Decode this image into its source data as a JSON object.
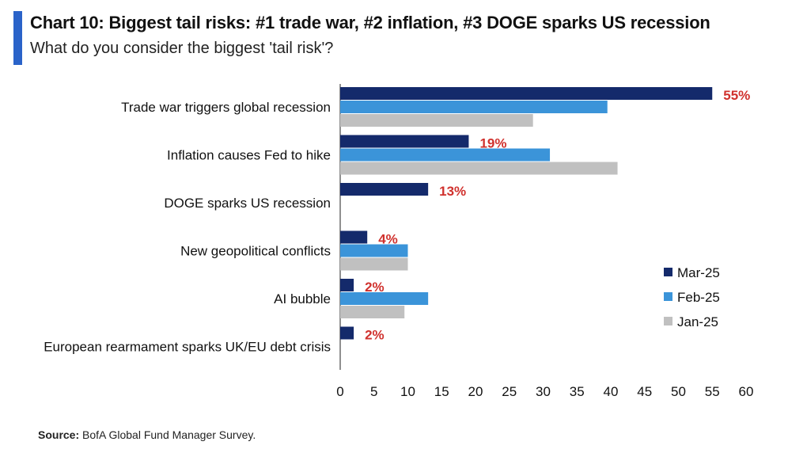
{
  "header": {
    "title": "Chart 10: Biggest tail risks: #1 trade war, #2 inflation, #3 DOGE sparks US recession",
    "subtitle": "What do you consider the biggest 'tail risk'?"
  },
  "footer": {
    "source_label": "Source:",
    "source_text": " BofA Global Fund Manager Survey."
  },
  "colors": {
    "accent": "#2a63c9",
    "highlight_label": "#d0312d"
  },
  "chart_data": {
    "type": "bar",
    "orientation": "horizontal",
    "categories": [
      "Trade war triggers global recession",
      "Inflation causes Fed to hike",
      "DOGE sparks US recession",
      "New geopolitical conflicts",
      "AI bubble",
      "European rearmament sparks UK/EU debt crisis"
    ],
    "series": [
      {
        "name": "Mar-25",
        "color": "#142a6b",
        "values": [
          55,
          19,
          13,
          4,
          2,
          2
        ]
      },
      {
        "name": "Feb-25",
        "color": "#3b94d9",
        "values": [
          39.5,
          31,
          null,
          10,
          13,
          null
        ]
      },
      {
        "name": "Jan-25",
        "color": "#c0c0c0",
        "values": [
          28.5,
          41,
          null,
          10,
          9.5,
          null
        ]
      }
    ],
    "data_labels": [
      "55%",
      "19%",
      "13%",
      "4%",
      "2%",
      "2%"
    ],
    "xlim": [
      0,
      60
    ],
    "xticks": [
      0,
      5,
      10,
      15,
      20,
      25,
      30,
      35,
      40,
      45,
      50,
      55,
      60
    ],
    "grid": false,
    "legend_position": "right"
  }
}
